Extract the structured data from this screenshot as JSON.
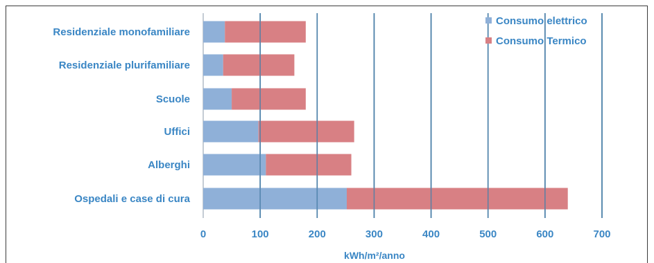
{
  "chart_data": {
    "type": "bar",
    "stacked": true,
    "orientation": "horizontal",
    "categories": [
      "Residenziale monofamiliare",
      "Residenziale plurifamiliare",
      "Scuole",
      "Uffici",
      "Alberghi",
      "Ospedali e case di cura"
    ],
    "series": [
      {
        "name": "Consumo elettrico",
        "color": "#8fb0d8",
        "values": [
          38,
          35,
          50,
          97,
          110,
          252
        ]
      },
      {
        "name": "Consumo Termico",
        "color": "#d88084",
        "values": [
          142,
          125,
          130,
          168,
          150,
          388
        ]
      }
    ],
    "xlabel": "kWh/m²/anno",
    "xlim": [
      0,
      700
    ],
    "xticks": [
      "0",
      "100",
      "200",
      "300",
      "400",
      "500",
      "600",
      "700"
    ],
    "grid": "vertical",
    "legend_position": "top-right"
  }
}
